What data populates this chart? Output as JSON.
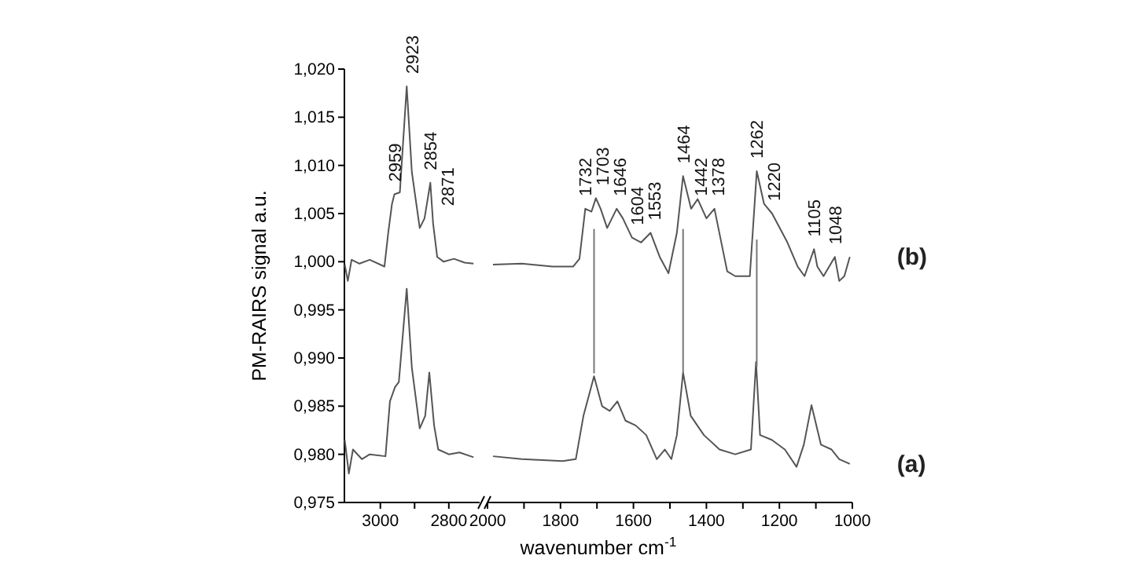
{
  "chart_data": [
    {
      "type": "line",
      "ylabel": "PM-RAIRS signal a.u.",
      "xlim": [
        3105,
        2710
      ],
      "ylim": [
        0.975,
        1.02
      ],
      "xticks": [
        3000,
        {
          "value": 2900,
          "label": null
        },
        2800
      ],
      "yticks": [
        {
          "value": 0.975,
          "label": "0,975"
        },
        {
          "value": 0.98,
          "label": "0,980"
        },
        {
          "value": 0.985,
          "label": "0,985"
        },
        {
          "value": 0.99,
          "label": "0,990"
        },
        {
          "value": 0.995,
          "label": "0,995"
        },
        {
          "value": 1.0,
          "label": "1,000"
        },
        {
          "value": 1.005,
          "label": "1,005"
        },
        {
          "value": 1.01,
          "label": "1,010"
        },
        {
          "value": 1.015,
          "label": "1,015"
        },
        {
          "value": 1.02,
          "label": "1,020"
        }
      ],
      "series": [
        {
          "color": "#555555",
          "x": [
            3104,
            3095,
            3084,
            3061,
            3031,
            2988,
            2977,
            2966,
            2959,
            2943,
            2923,
            2908,
            2885,
            2871,
            2854,
            2846,
            2834,
            2815,
            2785,
            2754,
            2728
          ],
          "values": [
            0.9997,
            0.998,
            1.0002,
            0.9998,
            1.0002,
            0.9995,
            1.003,
            1.006,
            1.007,
            1.0072,
            1.0182,
            1.0093,
            1.0035,
            1.0045,
            1.0082,
            1.004,
            1.0005,
            1.0,
            1.0003,
            0.9999,
            0.9998
          ]
        },
        {
          "color": "#555555",
          "x": [
            3104,
            3092,
            3080,
            3054,
            3031,
            2985,
            2972,
            2957,
            2946,
            2923,
            2908,
            2885,
            2869,
            2857,
            2843,
            2831,
            2800,
            2769,
            2728
          ],
          "values": [
            0.9815,
            0.978,
            0.9805,
            0.9795,
            0.98,
            0.9798,
            0.9855,
            0.987,
            0.9875,
            0.9972,
            0.989,
            0.9827,
            0.984,
            0.9885,
            0.983,
            0.9805,
            0.98,
            0.9802,
            0.9797
          ]
        }
      ],
      "annotations": [
        {
          "text": "2959",
          "x": 2959,
          "y": 1.007
        },
        {
          "text": "2923",
          "x": 2923,
          "y": 1.0182
        },
        {
          "text": "2854",
          "x": 2854,
          "y": 1.0082
        },
        {
          "text": "2871",
          "x": 2871,
          "y": 1.0045
        }
      ]
    },
    {
      "type": "line",
      "xlabel": "wavenumber cm$^{-1}$",
      "xlim": [
        2000,
        1000
      ],
      "ylim": [
        0.975,
        1.02
      ],
      "tick_labels": "x",
      "xticks": [
        2000,
        {
          "value": 1900,
          "label": null
        },
        1800,
        {
          "value": 1700,
          "label": null
        },
        1600,
        {
          "value": 1500,
          "label": null
        },
        1400,
        {
          "value": 1300,
          "label": null
        },
        1200,
        {
          "value": 1100,
          "label": null
        },
        1000
      ],
      "series": [
        {
          "name": "(b)",
          "color": "#555555",
          "x": [
            1985,
            1906,
            1822,
            1765,
            1748,
            1732,
            1715,
            1703,
            1690,
            1672,
            1646,
            1629,
            1604,
            1579,
            1553,
            1528,
            1504,
            1481,
            1464,
            1442,
            1424,
            1400,
            1378,
            1343,
            1321,
            1281,
            1262,
            1242,
            1220,
            1178,
            1150,
            1131,
            1105,
            1096,
            1079,
            1048,
            1036,
            1022,
            1007
          ],
          "values": [
            0.9997,
            0.9998,
            0.9995,
            0.9995,
            1.0003,
            1.0055,
            1.0052,
            1.0066,
            1.0055,
            1.0035,
            1.0055,
            1.0045,
            1.0025,
            1.002,
            1.003,
            1.0005,
            0.9988,
            1.003,
            1.0089,
            1.0055,
            1.0065,
            1.0045,
            1.0055,
            0.999,
            0.9985,
            0.9985,
            1.0094,
            1.006,
            1.005,
            1.002,
            0.9995,
            0.9985,
            1.0013,
            0.9995,
            0.9985,
            1.0005,
            0.998,
            0.9985,
            1.0005
          ]
        },
        {
          "name": "(a)",
          "color": "#555555",
          "x": [
            1985,
            1906,
            1794,
            1758,
            1737,
            1708,
            1686,
            1665,
            1644,
            1622,
            1594,
            1565,
            1536,
            1514,
            1496,
            1481,
            1464,
            1443,
            1407,
            1364,
            1321,
            1278,
            1264,
            1253,
            1221,
            1185,
            1153,
            1133,
            1112,
            1086,
            1057,
            1036,
            1007
          ],
          "values": [
            0.9798,
            0.9795,
            0.9793,
            0.9795,
            0.984,
            0.9881,
            0.985,
            0.9845,
            0.9855,
            0.9835,
            0.983,
            0.982,
            0.9795,
            0.9805,
            0.9795,
            0.982,
            0.9885,
            0.984,
            0.982,
            0.9805,
            0.98,
            0.9805,
            0.9896,
            0.982,
            0.9815,
            0.9805,
            0.9787,
            0.981,
            0.9851,
            0.981,
            0.9805,
            0.9795,
            0.979
          ]
        },
        {
          "color": "#777777",
          "x": [
            1708,
            1708
          ],
          "values": [
            0.9884,
            1.0034
          ]
        },
        {
          "color": "#777777",
          "x": [
            1464,
            1464
          ],
          "values": [
            0.9884,
            1.0034
          ]
        },
        {
          "color": "#777777",
          "x": [
            1262,
            1262
          ],
          "values": [
            0.9891,
            1.0023
          ]
        }
      ],
      "annotations": [
        {
          "text": "1732",
          "x": 1732,
          "y": 1.0055
        },
        {
          "text": "1703",
          "x": 1703,
          "y": 1.0066
        },
        {
          "text": "1646",
          "x": 1646,
          "y": 1.0055
        },
        {
          "text": "1604",
          "x": 1604,
          "y": 1.0025
        },
        {
          "text": "1553",
          "x": 1553,
          "y": 1.003
        },
        {
          "text": "1464",
          "x": 1464,
          "y": 1.0089
        },
        {
          "text": "1442",
          "x": 1442,
          "y": 1.0055
        },
        {
          "text": "1378",
          "x": 1378,
          "y": 1.0055
        },
        {
          "text": "1262",
          "x": 1262,
          "y": 1.0094
        },
        {
          "text": "1220",
          "x": 1220,
          "y": 1.005
        },
        {
          "text": "1105",
          "x": 1105,
          "y": 1.0013
        },
        {
          "text": "1048",
          "x": 1048,
          "y": 1.0005
        }
      ]
    }
  ]
}
